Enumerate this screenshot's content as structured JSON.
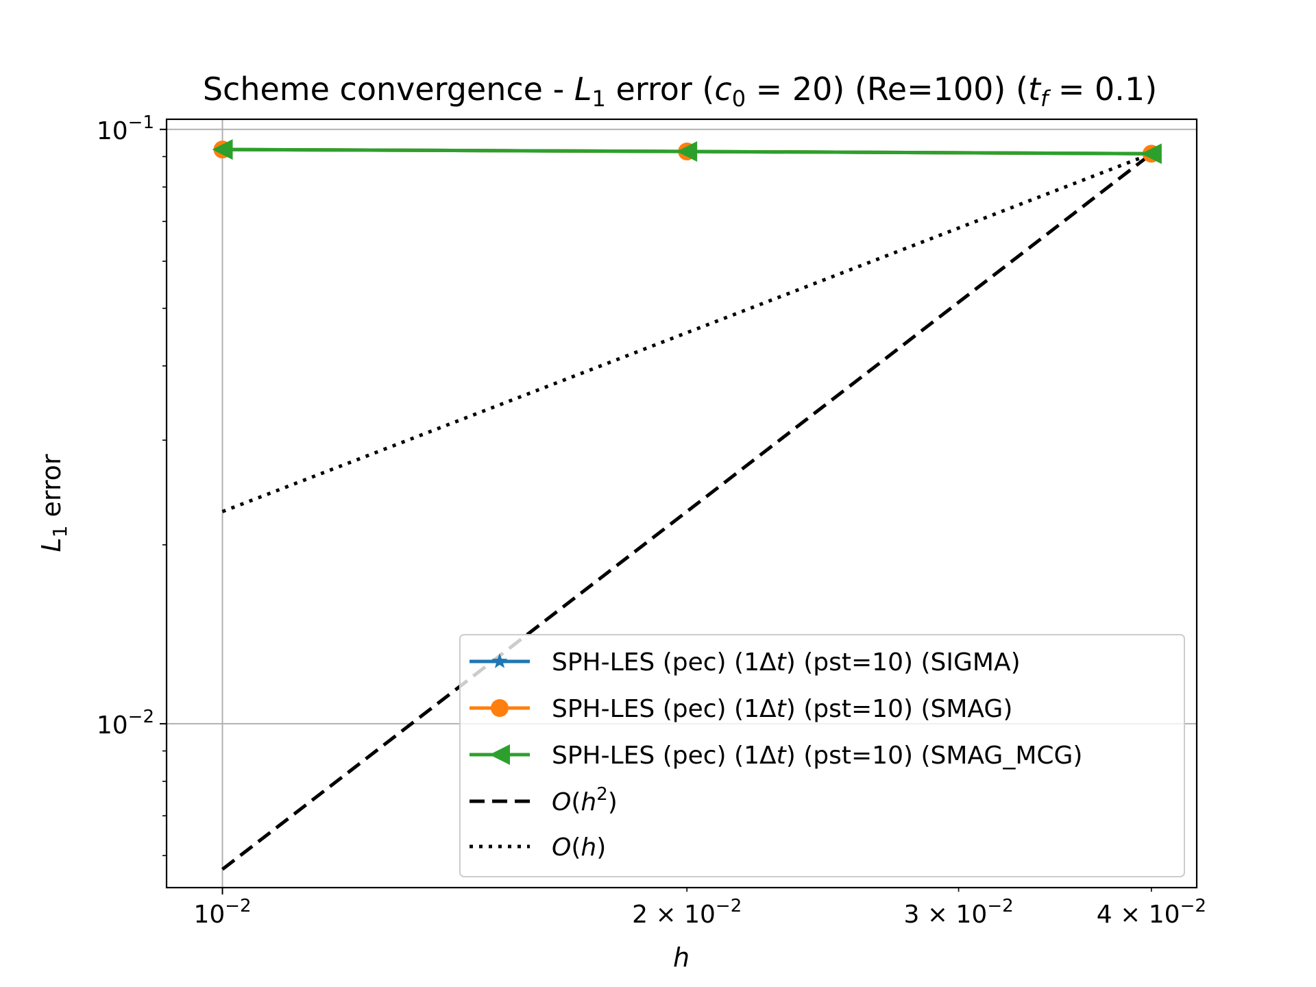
{
  "chart_data": {
    "type": "line",
    "title": {
      "prefix": "Scheme convergence - ",
      "L": "L",
      "L_sub": "1",
      "mid1": " error (",
      "c": "c",
      "c_sub": "0",
      "c_val": " = 20) (Re=100) (",
      "t": "t",
      "t_sub": "f",
      "t_val": " = 0.1)"
    },
    "xlabel": "h",
    "ylabel": {
      "L": "L",
      "sub": "1",
      "rest": " error"
    },
    "x_scale": "log",
    "y_scale": "log",
    "xlim": [
      0.0092,
      0.0428
    ],
    "ylim": [
      0.0053,
      0.104
    ],
    "grid": true,
    "x_ticks": [
      {
        "value": 0.01,
        "mant": "",
        "base": "10",
        "exp": "−2"
      },
      {
        "value": 0.02,
        "mant": "2 × ",
        "base": "10",
        "exp": "−2"
      },
      {
        "value": 0.03,
        "mant": "3 × ",
        "base": "10",
        "exp": "−2"
      },
      {
        "value": 0.04,
        "mant": "4 × ",
        "base": "10",
        "exp": "−2"
      }
    ],
    "y_ticks": [
      {
        "value": 0.1,
        "base": "10",
        "exp": "−1"
      },
      {
        "value": 0.01,
        "base": "10",
        "exp": "−2"
      }
    ],
    "series": [
      {
        "name": "SPH-LES (pec) (1Δt) (pst=10) (SIGMA)",
        "name_parts": [
          "SPH-LES (pec) (1Δ",
          "t",
          ") (pst=10) (SIGMA)"
        ],
        "color": "#1f77b4",
        "marker": "star",
        "style": "solid",
        "x": [
          0.01,
          0.02,
          0.04
        ],
        "y": [
          0.0925,
          0.0918,
          0.091
        ]
      },
      {
        "name": "SPH-LES (pec) (1Δt) (pst=10) (SMAG)",
        "name_parts": [
          "SPH-LES (pec) (1Δ",
          "t",
          ") (pst=10) (SMAG)"
        ],
        "color": "#ff7f0e",
        "marker": "circle",
        "style": "solid",
        "x": [
          0.01,
          0.02,
          0.04
        ],
        "y": [
          0.0925,
          0.0918,
          0.091
        ]
      },
      {
        "name": "SPH-LES (pec) (1Δt) (pst=10) (SMAG_MCG)",
        "name_parts": [
          "SPH-LES (pec) (1Δ",
          "t",
          ") (pst=10) (SMAG_MCG)"
        ],
        "color": "#2ca02c",
        "marker": "triangle-left",
        "style": "solid",
        "x": [
          0.01,
          0.02,
          0.04
        ],
        "y": [
          0.0925,
          0.0918,
          0.091
        ]
      },
      {
        "name": "O(h²)",
        "name_parts": [
          "O",
          "(",
          "h",
          "2",
          ")"
        ],
        "color": "#000000",
        "marker": "none",
        "style": "dashed",
        "x": [
          0.01,
          0.04
        ],
        "y": [
          0.00569,
          0.091
        ]
      },
      {
        "name": "O(h)",
        "name_parts": [
          "O",
          "(",
          "h",
          ")"
        ],
        "color": "#000000",
        "marker": "none",
        "style": "dotted",
        "x": [
          0.01,
          0.04
        ],
        "y": [
          0.02275,
          0.091
        ]
      }
    ],
    "legend_location": "lower right"
  }
}
